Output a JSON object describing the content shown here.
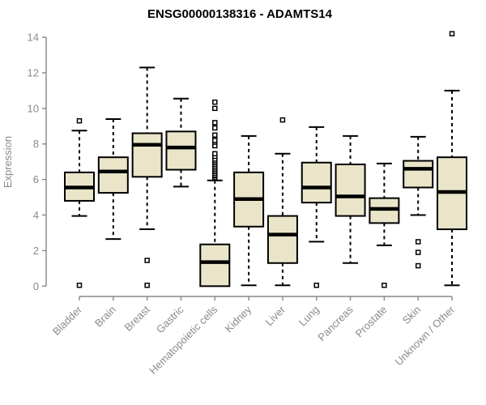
{
  "chart_data": {
    "type": "boxplot",
    "title": "ENSG00000138316 - ADAMTS14",
    "ylabel": "Expression",
    "xlabel": "",
    "ylim": [
      0,
      14
    ],
    "yticks": [
      0,
      2,
      4,
      6,
      8,
      10,
      12,
      14
    ],
    "grid": false,
    "legend": "none",
    "categories": [
      "Bladder",
      "Brain",
      "Breast",
      "Gastric",
      "Hematopoietic cells",
      "Kidney",
      "Liver",
      "Lung",
      "Pancreas",
      "Prostate",
      "Skin",
      "Unknown / Other"
    ],
    "boxes": [
      {
        "category": "Bladder",
        "whisker_low": 3.95,
        "q1": 4.8,
        "median": 5.55,
        "q3": 6.4,
        "whisker_high": 8.75,
        "outliers": [
          9.3,
          0.05
        ]
      },
      {
        "category": "Brain",
        "whisker_low": 2.65,
        "q1": 5.25,
        "median": 6.45,
        "q3": 7.25,
        "whisker_high": 9.4,
        "outliers": []
      },
      {
        "category": "Breast",
        "whisker_low": 3.2,
        "q1": 6.15,
        "median": 7.95,
        "q3": 8.6,
        "whisker_high": 12.3,
        "outliers": [
          1.45,
          0.05
        ]
      },
      {
        "category": "Gastric",
        "whisker_low": 5.6,
        "q1": 6.55,
        "median": 7.8,
        "q3": 8.7,
        "whisker_high": 10.55,
        "outliers": []
      },
      {
        "category": "Hematopoietic cells",
        "whisker_low": 0.0,
        "q1": 0.0,
        "median": 1.35,
        "q3": 2.35,
        "whisker_high": 5.95,
        "outliers": [
          6.1,
          6.2,
          6.25,
          6.35,
          6.45,
          6.55,
          6.65,
          6.75,
          6.85,
          6.95,
          7.05,
          7.15,
          7.3,
          7.45,
          7.9,
          8.1,
          8.2,
          8.5,
          8.9,
          9.2,
          10.0,
          10.35
        ]
      },
      {
        "category": "Kidney",
        "whisker_low": 0.05,
        "q1": 3.35,
        "median": 4.9,
        "q3": 6.4,
        "whisker_high": 8.45,
        "outliers": []
      },
      {
        "category": "Liver",
        "whisker_low": 0.05,
        "q1": 1.3,
        "median": 2.9,
        "q3": 3.95,
        "whisker_high": 7.45,
        "outliers": [
          9.35
        ]
      },
      {
        "category": "Lung",
        "whisker_low": 2.5,
        "q1": 4.7,
        "median": 5.55,
        "q3": 6.95,
        "whisker_high": 8.95,
        "outliers": [
          0.05
        ]
      },
      {
        "category": "Pancreas",
        "whisker_low": 1.3,
        "q1": 3.95,
        "median": 5.05,
        "q3": 6.85,
        "whisker_high": 8.45,
        "outliers": []
      },
      {
        "category": "Prostate",
        "whisker_low": 2.3,
        "q1": 3.55,
        "median": 4.35,
        "q3": 4.95,
        "whisker_high": 6.9,
        "outliers": [
          0.05
        ]
      },
      {
        "category": "Skin",
        "whisker_low": 4.0,
        "q1": 5.55,
        "median": 6.6,
        "q3": 7.05,
        "whisker_high": 8.4,
        "outliers": [
          2.5,
          1.9,
          1.15
        ]
      },
      {
        "category": "Unknown / Other",
        "whisker_low": 0.05,
        "q1": 3.2,
        "median": 5.3,
        "q3": 7.25,
        "whisker_high": 11.0,
        "outliers": [
          14.2
        ]
      }
    ],
    "colors": {
      "box_fill": "#EAE5C9",
      "box_stroke": "#000000",
      "median": "#000000",
      "whisker": "#000000",
      "outlier_stroke": "#000000",
      "outlier_fill": "#ffffff",
      "axis": "#878787",
      "tick_label": "#8a8a8a",
      "title": "#000000"
    }
  }
}
